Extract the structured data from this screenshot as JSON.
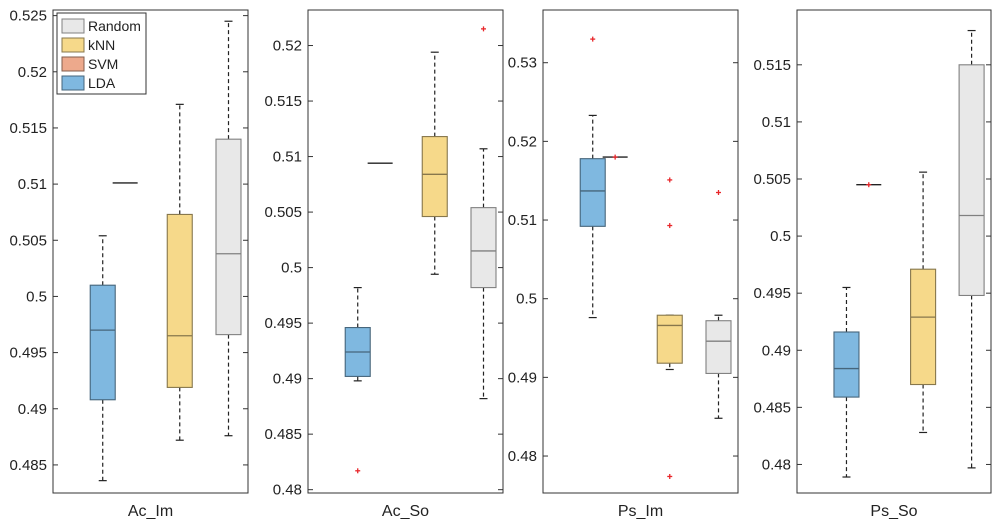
{
  "chart_data": [
    {
      "type": "box",
      "xlabel": "Ac_Im",
      "ylim": [
        0.4825,
        0.5255
      ],
      "yticks": [
        0.485,
        0.49,
        0.495,
        0.5,
        0.505,
        0.51,
        0.515,
        0.52,
        0.525
      ],
      "ytick_labels": [
        "0.485",
        "0.49",
        "0.495",
        "0.5",
        "0.505",
        "0.51",
        "0.515",
        "0.52",
        "0.525"
      ],
      "legend": {
        "position": "top-left",
        "entries": [
          {
            "label": "Random",
            "color": "#E8E8E8"
          },
          {
            "label": "kNN",
            "color": "#F6D98A"
          },
          {
            "label": "SVM",
            "color": "#EDA98C"
          },
          {
            "label": "LDA",
            "color": "#7FB8E0"
          }
        ]
      },
      "boxes": [
        {
          "method": "LDA",
          "min": 0.4836,
          "q1": 0.4908,
          "median": 0.497,
          "q3": 0.501,
          "max": 0.5054,
          "outliers": []
        },
        {
          "method": "SVM",
          "min": 0.5101,
          "q1": 0.5101,
          "median": 0.5101,
          "q3": 0.5101,
          "max": 0.5101,
          "outliers": []
        },
        {
          "method": "kNN",
          "min": 0.4872,
          "q1": 0.4919,
          "median": 0.4965,
          "q3": 0.5073,
          "max": 0.5171,
          "outliers": []
        },
        {
          "method": "Random",
          "min": 0.4876,
          "q1": 0.4966,
          "median": 0.5038,
          "q3": 0.514,
          "max": 0.5245,
          "outliers": []
        }
      ]
    },
    {
      "type": "box",
      "xlabel": "Ac_So",
      "ylim": [
        0.4797,
        0.5232
      ],
      "yticks": [
        0.48,
        0.485,
        0.49,
        0.495,
        0.5,
        0.505,
        0.51,
        0.515,
        0.52
      ],
      "ytick_labels": [
        "0.48",
        "0.485",
        "0.49",
        "0.495",
        "0.5",
        "0.505",
        "0.51",
        "0.515",
        "0.52"
      ],
      "boxes": [
        {
          "method": "LDA",
          "min": 0.4898,
          "q1": 0.4902,
          "median": 0.4924,
          "q3": 0.4946,
          "max": 0.4982,
          "outliers": [
            0.4817
          ]
        },
        {
          "method": "SVM",
          "min": 0.5094,
          "q1": 0.5094,
          "median": 0.5094,
          "q3": 0.5094,
          "max": 0.5094,
          "outliers": []
        },
        {
          "method": "kNN",
          "min": 0.4994,
          "q1": 0.5046,
          "median": 0.5084,
          "q3": 0.5118,
          "max": 0.5194,
          "outliers": []
        },
        {
          "method": "Random",
          "min": 0.4882,
          "q1": 0.4982,
          "median": 0.5015,
          "q3": 0.5054,
          "max": 0.5107,
          "outliers": [
            0.5215
          ]
        }
      ]
    },
    {
      "type": "box",
      "xlabel": "Ps_Im",
      "ylim": [
        0.4753,
        0.5367
      ],
      "yticks": [
        0.48,
        0.49,
        0.5,
        0.51,
        0.52,
        0.53
      ],
      "ytick_labels": [
        "0.48",
        "0.49",
        "0.5",
        "0.51",
        "0.52",
        "0.53"
      ],
      "boxes": [
        {
          "method": "LDA",
          "min": 0.4976,
          "q1": 0.5092,
          "median": 0.5137,
          "q3": 0.5178,
          "max": 0.5233,
          "outliers": [
            0.533
          ]
        },
        {
          "method": "SVM",
          "min": 0.518,
          "q1": 0.518,
          "median": 0.518,
          "q3": 0.518,
          "max": 0.518,
          "outliers": [
            0.518
          ]
        },
        {
          "method": "kNN",
          "min": 0.491,
          "q1": 0.4918,
          "median": 0.4966,
          "q3": 0.4979,
          "max": 0.4979,
          "outliers": [
            0.5151,
            0.5093,
            0.4774
          ]
        },
        {
          "method": "Random",
          "min": 0.4848,
          "q1": 0.4905,
          "median": 0.4946,
          "q3": 0.4972,
          "max": 0.4979,
          "outliers": [
            0.5135
          ]
        }
      ]
    },
    {
      "type": "box",
      "xlabel": "Ps_So",
      "ylim": [
        0.4775,
        0.5198
      ],
      "yticks": [
        0.48,
        0.485,
        0.49,
        0.495,
        0.5,
        0.505,
        0.51,
        0.515
      ],
      "ytick_labels": [
        "0.48",
        "0.485",
        "0.49",
        "0.495",
        "0.5",
        "0.505",
        "0.51",
        "0.515"
      ],
      "boxes": [
        {
          "method": "LDA",
          "min": 0.4789,
          "q1": 0.4859,
          "median": 0.4884,
          "q3": 0.4916,
          "max": 0.4955,
          "outliers": []
        },
        {
          "method": "SVM",
          "min": 0.5045,
          "q1": 0.5045,
          "median": 0.5045,
          "q3": 0.5045,
          "max": 0.5045,
          "outliers": [
            0.5045
          ]
        },
        {
          "method": "kNN",
          "min": 0.4828,
          "q1": 0.487,
          "median": 0.4929,
          "q3": 0.4971,
          "max": 0.5056,
          "outliers": []
        },
        {
          "method": "Random",
          "min": 0.4797,
          "q1": 0.4948,
          "median": 0.5018,
          "q3": 0.515,
          "max": 0.518,
          "outliers": []
        }
      ]
    }
  ]
}
